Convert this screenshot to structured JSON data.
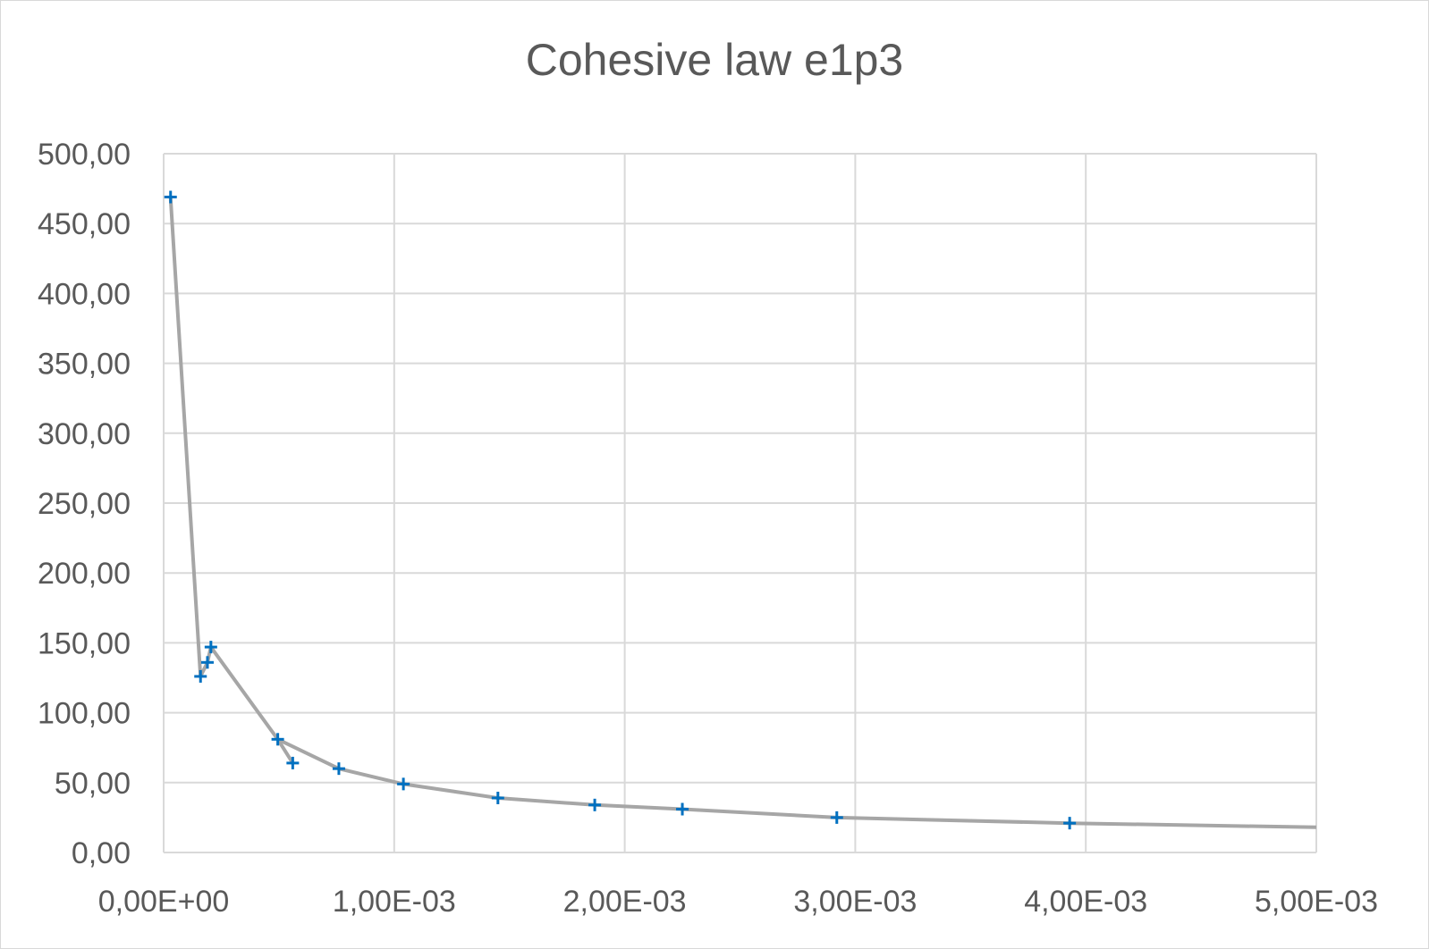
{
  "chart_data": {
    "type": "scatter",
    "title": "Cohesive law e1p3",
    "xlabel": "",
    "ylabel": "",
    "xlim": [
      0,
      0.005
    ],
    "ylim": [
      0,
      500
    ],
    "x_ticks": [
      0,
      0.001,
      0.002,
      0.003,
      0.004,
      0.005
    ],
    "x_tick_labels": [
      "0,00E+00",
      "1,00E-03",
      "2,00E-03",
      "3,00E-03",
      "4,00E-03",
      "5,00E-03"
    ],
    "y_ticks": [
      0,
      50,
      100,
      150,
      200,
      250,
      300,
      350,
      400,
      450,
      500
    ],
    "y_tick_labels": [
      "0,00",
      "50,00",
      "100,00",
      "150,00",
      "200,00",
      "250,00",
      "300,00",
      "350,00",
      "400,00",
      "450,00",
      "500,00"
    ],
    "grid": true,
    "legend": "none",
    "series": [
      {
        "kind": "points",
        "marker": "plus",
        "color": "#0070c0",
        "x": [
          3e-05,
          0.00016,
          0.00019,
          0.000205,
          0.000495,
          0.00056,
          0.00076,
          0.00104,
          0.00145,
          0.00187,
          0.00225,
          0.00292,
          0.00393
        ],
        "y": [
          469,
          126,
          136,
          147,
          81,
          64,
          60,
          49,
          39,
          34,
          31,
          25,
          21
        ]
      },
      {
        "kind": "line",
        "color": "#a6a6a6",
        "x": [
          3e-05,
          0.00016,
          0.00019,
          0.000205,
          0.000495,
          0.00056,
          0.000495,
          0.00076,
          0.00104,
          0.00145,
          0.00187,
          0.00225,
          0.00292,
          0.00393,
          0.005
        ],
        "y": [
          469,
          126,
          136,
          147,
          81,
          64,
          81,
          60,
          49,
          39,
          34,
          31,
          25,
          21,
          18
        ]
      }
    ]
  }
}
